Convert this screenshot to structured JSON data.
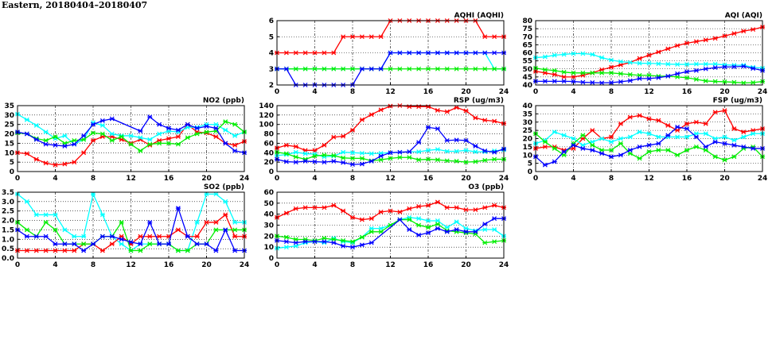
{
  "page_title": "Eastern, 20180404–20180407",
  "series_colors": {
    "red": "#ff0000",
    "blue": "#0000ff",
    "green": "#00ee00",
    "cyan": "#00ffff"
  },
  "chart_data": [
    {
      "type": "line",
      "title": "AQHI (AQHI)",
      "xlim": [
        0,
        24
      ],
      "xticks": [
        0,
        4,
        8,
        12,
        16,
        20,
        24
      ],
      "ylim": [
        2,
        6
      ],
      "yticks": [
        "2",
        "3",
        "4",
        "5",
        "6"
      ],
      "grid": true,
      "series": [
        {
          "name": "red",
          "values": [
            4,
            4,
            4,
            4,
            4,
            4,
            4,
            5,
            5,
            5,
            5,
            5,
            6,
            6,
            6,
            6,
            6,
            6,
            6,
            6,
            6,
            6,
            5,
            5,
            5
          ]
        },
        {
          "name": "cyan",
          "values": [
            3,
            3,
            3,
            3,
            3,
            3,
            3,
            3,
            3,
            3,
            3,
            3,
            4,
            4,
            4,
            4,
            4,
            4,
            4,
            4,
            4,
            4,
            4,
            3,
            3
          ]
        },
        {
          "name": "green",
          "values": [
            3,
            3,
            3,
            3,
            3,
            3,
            3,
            3,
            3,
            3,
            3,
            3,
            3,
            3,
            3,
            3,
            3,
            3,
            3,
            3,
            3,
            3,
            3,
            3,
            3
          ]
        },
        {
          "name": "blue",
          "values": [
            3,
            3,
            2,
            2,
            2,
            2,
            2,
            2,
            2,
            3,
            3,
            3,
            4,
            4,
            4,
            4,
            4,
            4,
            4,
            4,
            4,
            4,
            4,
            4,
            4
          ]
        }
      ]
    },
    {
      "type": "line",
      "title": "AQI (AQI)",
      "xlim": [
        0,
        24
      ],
      "xticks": [
        0,
        4,
        8,
        12,
        16,
        20,
        24
      ],
      "ylim": [
        40,
        80
      ],
      "yticks": [
        "40",
        "45",
        "50",
        "55",
        "60",
        "65",
        "70",
        "75",
        "80"
      ],
      "grid": true,
      "series": [
        {
          "name": "red",
          "values": [
            48.5,
            47.5,
            46.5,
            45,
            45,
            46,
            47.5,
            49.5,
            51,
            52.5,
            54,
            56.5,
            58.5,
            60.5,
            62.5,
            64.5,
            66,
            67,
            68,
            69,
            70.5,
            72,
            73.5,
            74.5,
            76
          ]
        },
        {
          "name": "cyan",
          "values": [
            57,
            57.5,
            58.5,
            59,
            59.5,
            59.5,
            59,
            57,
            55.5,
            54.5,
            54,
            53.5,
            53.5,
            53.2,
            53,
            52.8,
            52.8,
            53,
            53,
            53,
            52.5,
            52.3,
            52.3,
            51,
            50.5
          ]
        },
        {
          "name": "green",
          "values": [
            50.5,
            49.5,
            49,
            48,
            47.5,
            47.5,
            47.5,
            47.5,
            47.5,
            47,
            46.5,
            46,
            46,
            45.5,
            45.5,
            45,
            44.5,
            43.5,
            42.5,
            42.2,
            42,
            41.7,
            41.3,
            41.5,
            42.2
          ]
        },
        {
          "name": "blue",
          "values": [
            42.3,
            42.3,
            42.3,
            42.3,
            42.2,
            41.7,
            41.5,
            41.3,
            41.5,
            42,
            42.7,
            44,
            44,
            44.5,
            45.5,
            47,
            48.3,
            49,
            50,
            50.8,
            51.2,
            51.3,
            51.6,
            50.3,
            49
          ]
        }
      ]
    },
    {
      "type": "line",
      "title": "NO2 (ppb)",
      "xlim": [
        0,
        24
      ],
      "xticks": [
        0,
        4,
        8,
        12,
        16,
        20,
        24
      ],
      "ylim": [
        0,
        35
      ],
      "yticks": [
        "0",
        "5",
        "10",
        "15",
        "20",
        "25",
        "30",
        "35"
      ],
      "grid": true,
      "series": [
        {
          "name": "red",
          "values": [
            10,
            9.5,
            6.5,
            4.5,
            3.5,
            4,
            5,
            10,
            16.5,
            18.5,
            18.5,
            17,
            15,
            17,
            14,
            16.5,
            17.5,
            18.5,
            25,
            21,
            20.5,
            18.5,
            15,
            14,
            16
          ]
        },
        {
          "name": "cyan",
          "values": [
            30.5,
            27.5,
            24.5,
            21,
            17.5,
            19,
            14.5,
            17,
            26,
            24.5,
            20,
            19,
            19,
            18,
            17,
            20,
            21.5,
            21,
            23.5,
            23.5,
            25,
            25,
            22,
            19,
            21
          ]
        },
        {
          "name": "green",
          "values": [
            20.5,
            20,
            17.5,
            16.5,
            18.5,
            15,
            16.5,
            17,
            20.5,
            20,
            16.5,
            18.5,
            14.5,
            11,
            14.5,
            15,
            15,
            14.5,
            18,
            20,
            21,
            21.5,
            26.5,
            25,
            21
          ]
        },
        {
          "name": "blue",
          "values": [
            21,
            20,
            17,
            14.5,
            14,
            13.5,
            14.5,
            19,
            25,
            27,
            28,
            null,
            null,
            21.5,
            29,
            25,
            23,
            22,
            25,
            23,
            24,
            23,
            15,
            11,
            10
          ]
        }
      ]
    },
    {
      "type": "line",
      "title": "RSP (ug/m3)",
      "xlim": [
        0,
        24
      ],
      "xticks": [
        0,
        4,
        8,
        12,
        16,
        20,
        24
      ],
      "ylim": [
        0,
        140
      ],
      "yticks": [
        "0",
        "20",
        "40",
        "60",
        "80",
        "100",
        "120",
        "140"
      ],
      "grid": true,
      "series": [
        {
          "name": "red",
          "values": [
            50,
            56,
            53,
            45,
            45,
            56,
            73,
            75,
            88,
            110,
            121,
            131,
            139,
            140,
            138,
            138,
            138,
            130,
            127,
            136,
            129,
            114,
            109,
            107,
            102
          ]
        },
        {
          "name": "cyan",
          "values": [
            34,
            36,
            41,
            38,
            37,
            31,
            33,
            41,
            40,
            39,
            38,
            39,
            40,
            41,
            42,
            42,
            45,
            47,
            43,
            43,
            45,
            42,
            42,
            44,
            46
          ]
        },
        {
          "name": "green",
          "values": [
            41,
            38,
            31,
            26,
            33,
            35,
            34,
            29,
            28,
            28,
            23,
            25,
            28,
            30,
            30,
            25,
            26,
            25,
            23,
            22,
            20,
            21,
            24,
            26,
            26
          ]
        },
        {
          "name": "blue",
          "values": [
            26,
            21,
            20,
            22,
            21,
            20,
            22,
            19,
            15,
            16,
            22,
            33,
            40,
            41,
            42,
            62,
            94,
            91,
            66,
            67,
            66,
            54,
            44,
            41,
            48
          ]
        }
      ]
    },
    {
      "type": "line",
      "title": "FSP (ug/m3)",
      "xlim": [
        0,
        24
      ],
      "xticks": [
        0,
        4,
        8,
        12,
        16,
        20,
        24
      ],
      "ylim": [
        0,
        40
      ],
      "yticks": [
        "0",
        "5",
        "10",
        "15",
        "20",
        "25",
        "30",
        "35",
        "40"
      ],
      "grid": true,
      "series": [
        {
          "name": "red",
          "values": [
            14,
            15,
            15,
            13,
            14,
            20,
            25,
            20,
            21,
            29,
            33,
            34,
            32,
            31,
            28,
            25,
            29,
            30,
            29,
            36,
            37,
            26,
            24,
            25,
            26
          ]
        },
        {
          "name": "cyan",
          "values": [
            17,
            19,
            24,
            22,
            20,
            16,
            18,
            20,
            18,
            20,
            21,
            24,
            23,
            21,
            21,
            21,
            21,
            23,
            23,
            20,
            21,
            19,
            21,
            23,
            23
          ]
        },
        {
          "name": "green",
          "values": [
            23,
            18,
            14,
            10,
            17,
            22,
            16,
            13,
            13,
            17,
            11,
            8,
            12,
            13,
            13,
            10,
            13,
            15,
            13,
            9,
            7,
            9,
            14,
            15,
            9
          ]
        },
        {
          "name": "blue",
          "values": [
            9,
            4,
            6,
            12,
            16,
            14,
            13,
            11,
            9,
            10,
            13,
            15,
            16,
            17,
            22,
            27,
            26,
            21,
            15,
            18,
            17,
            16,
            15,
            14,
            14
          ]
        }
      ]
    },
    {
      "type": "line",
      "title": "SO2 (ppb)",
      "xlim": [
        0,
        24
      ],
      "xticks": [
        0,
        4,
        8,
        12,
        16,
        20,
        24
      ],
      "ylim": [
        0,
        3.5
      ],
      "yticks": [
        "0.0",
        "0.5",
        "1.0",
        "1.5",
        "2.0",
        "2.5",
        "3.0",
        "3.5"
      ],
      "grid": true,
      "series": [
        {
          "name": "cyan",
          "values": [
            3.4,
            3.0,
            2.3,
            2.3,
            2.3,
            1.5,
            1.15,
            1.15,
            3.4,
            2.3,
            1.15,
            0.75,
            0.4,
            0.75,
            0.75,
            0.75,
            0.75,
            0.4,
            0.4,
            1.9,
            3.4,
            3.4,
            3.0,
            1.9,
            1.9
          ]
        },
        {
          "name": "red",
          "values": [
            0.4,
            0.4,
            0.4,
            0.4,
            0.4,
            0.4,
            0.4,
            0.75,
            0.75,
            0.4,
            0.75,
            1.15,
            0.75,
            1.15,
            1.15,
            1.15,
            1.15,
            1.5,
            1.15,
            1.15,
            1.9,
            1.9,
            2.3,
            1.15,
            1.15
          ]
        },
        {
          "name": "green",
          "values": [
            1.9,
            1.5,
            1.15,
            1.9,
            1.5,
            0.75,
            0.75,
            0.75,
            0.75,
            1.15,
            1.15,
            1.9,
            0.4,
            0.4,
            0.75,
            0.75,
            0.75,
            0.4,
            0.4,
            0.75,
            0.75,
            1.5,
            1.5,
            1.5,
            1.5
          ]
        },
        {
          "name": "blue",
          "values": [
            1.5,
            1.15,
            1.15,
            1.15,
            0.75,
            0.75,
            0.75,
            0.4,
            0.75,
            1.15,
            1.15,
            1.0,
            0.85,
            0.75,
            1.9,
            0.75,
            0.75,
            2.65,
            1.15,
            0.75,
            0.75,
            0.4,
            1.5,
            0.4,
            0.4
          ]
        }
      ]
    },
    {
      "type": "line",
      "title": "O3 (ppb)",
      "xlim": [
        0,
        24
      ],
      "xticks": [
        0,
        4,
        8,
        12,
        16,
        20,
        24
      ],
      "ylim": [
        0,
        60
      ],
      "yticks": [
        "0",
        "10",
        "20",
        "30",
        "40",
        "50",
        "60"
      ],
      "grid": true,
      "series": [
        {
          "name": "red",
          "values": [
            37,
            41,
            45,
            46,
            46,
            46,
            48,
            43,
            37,
            35,
            36,
            42,
            43,
            42,
            45,
            47,
            48,
            51,
            46,
            46,
            44,
            44,
            46,
            48,
            46
          ]
        },
        {
          "name": "cyan",
          "values": [
            9,
            10,
            11,
            14,
            15,
            14,
            18,
            15,
            14,
            19,
            27,
            27,
            30,
            35,
            37,
            36,
            34,
            34,
            28,
            33,
            27,
            25,
            26,
            26,
            20
          ]
        },
        {
          "name": "green",
          "values": [
            20,
            19,
            17,
            17,
            16,
            18,
            17,
            16,
            15,
            19,
            24,
            24,
            30,
            35,
            35,
            30,
            28,
            31,
            25,
            24,
            23,
            22,
            14,
            15,
            16
          ]
        },
        {
          "name": "blue",
          "values": [
            16,
            15,
            14,
            15,
            15,
            15,
            14,
            11,
            10,
            12,
            14,
            null,
            null,
            35,
            26,
            21,
            23,
            27,
            24,
            26,
            24,
            24,
            31,
            36,
            36
          ]
        }
      ]
    }
  ]
}
